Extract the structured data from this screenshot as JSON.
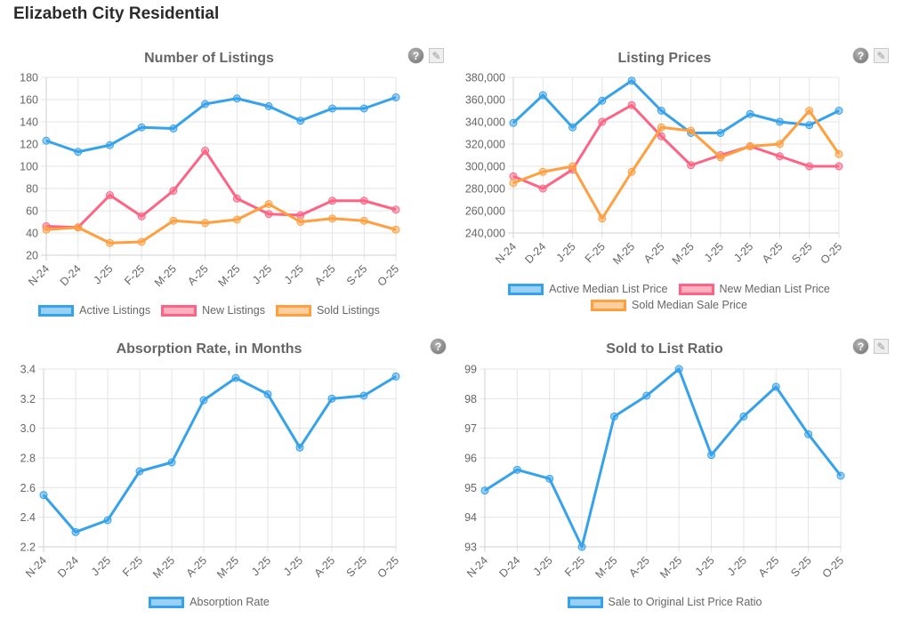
{
  "page": {
    "title": "Elizabeth City Residential"
  },
  "icons": {
    "help": "?",
    "tool": "✎"
  },
  "colors": {
    "blue": "#36a2eb",
    "pink": "#ff6384",
    "orange": "#ff9f40",
    "grid": "#e5e5e5",
    "text": "#666666"
  },
  "chart_data": [
    {
      "id": "listings",
      "type": "line",
      "title": "Number of Listings",
      "xlabel": "",
      "ylabel": "",
      "categories": [
        "N-24",
        "D-24",
        "J-25",
        "F-25",
        "M-25",
        "A-25",
        "M-25",
        "J-25",
        "J-25",
        "A-25",
        "S-25",
        "O-25"
      ],
      "ylim": [
        20,
        180
      ],
      "yticks": [
        20,
        40,
        60,
        80,
        100,
        120,
        140,
        160,
        180
      ],
      "ytick_labels": [
        "20",
        "40",
        "60",
        "80",
        "100",
        "120",
        "140",
        "160",
        "180"
      ],
      "grid": true,
      "legend": "bottom",
      "series": [
        {
          "name": "Active Listings",
          "color": "#36a2eb",
          "values": [
            123,
            113,
            119,
            135,
            134,
            156,
            161,
            154,
            141,
            152,
            152,
            162
          ]
        },
        {
          "name": "New Listings",
          "color": "#ff6384",
          "values": [
            46,
            45,
            74,
            55,
            78,
            114,
            71,
            57,
            56,
            69,
            69,
            61
          ]
        },
        {
          "name": "Sold Listings",
          "color": "#ff9f40",
          "values": [
            43,
            45,
            31,
            32,
            51,
            49,
            52,
            66,
            50,
            53,
            51,
            43
          ]
        }
      ]
    },
    {
      "id": "prices",
      "type": "line",
      "title": "Listing Prices",
      "xlabel": "",
      "ylabel": "",
      "categories": [
        "N-24",
        "D-24",
        "J-25",
        "F-25",
        "M-25",
        "A-25",
        "M-25",
        "J-25",
        "J-25",
        "A-25",
        "S-25",
        "O-25"
      ],
      "ylim": [
        240000,
        380000
      ],
      "yticks": [
        240000,
        260000,
        280000,
        300000,
        320000,
        340000,
        360000,
        380000
      ],
      "ytick_labels": [
        "240,000",
        "260,000",
        "280,000",
        "300,000",
        "320,000",
        "340,000",
        "360,000",
        "380,000"
      ],
      "grid": true,
      "legend": "bottom",
      "series": [
        {
          "name": "Active Median List Price",
          "color": "#36a2eb",
          "values": [
            339000,
            364000,
            335000,
            359000,
            377000,
            350000,
            330000,
            330000,
            347000,
            340000,
            337000,
            350000
          ]
        },
        {
          "name": "New Median List Price",
          "color": "#ff6384",
          "values": [
            291000,
            280000,
            297000,
            340000,
            355000,
            327000,
            301000,
            310000,
            318000,
            309000,
            300000,
            300000
          ]
        },
        {
          "name": "Sold Median Sale Price",
          "color": "#ff9f40",
          "values": [
            285000,
            295000,
            300000,
            253000,
            295000,
            335000,
            332000,
            308000,
            318000,
            320000,
            350000,
            311000
          ]
        }
      ]
    },
    {
      "id": "absorption",
      "type": "line",
      "title": "Absorption Rate, in Months",
      "xlabel": "",
      "ylabel": "",
      "categories": [
        "N-24",
        "D-24",
        "J-25",
        "F-25",
        "M-25",
        "A-25",
        "M-25",
        "J-25",
        "J-25",
        "A-25",
        "S-25",
        "O-25"
      ],
      "ylim": [
        2.2,
        3.4
      ],
      "yticks": [
        2.2,
        2.4,
        2.6,
        2.8,
        3.0,
        3.2,
        3.4
      ],
      "ytick_labels": [
        "2.2",
        "2.4",
        "2.6",
        "2.8",
        "3.0",
        "3.2",
        "3.4"
      ],
      "grid": true,
      "legend": "bottom",
      "series": [
        {
          "name": "Absorption Rate",
          "color": "#36a2eb",
          "values": [
            2.55,
            2.3,
            2.38,
            2.71,
            2.77,
            3.19,
            3.34,
            3.23,
            2.87,
            3.2,
            3.22,
            3.35
          ]
        }
      ]
    },
    {
      "id": "ratio",
      "type": "line",
      "title": "Sold to List Ratio",
      "xlabel": "",
      "ylabel": "",
      "categories": [
        "N-24",
        "D-24",
        "J-25",
        "F-25",
        "M-25",
        "A-25",
        "M-25",
        "J-25",
        "J-25",
        "A-25",
        "S-25",
        "O-25"
      ],
      "ylim": [
        93,
        99
      ],
      "yticks": [
        93,
        94,
        95,
        96,
        97,
        98,
        99
      ],
      "ytick_labels": [
        "93",
        "94",
        "95",
        "96",
        "97",
        "98",
        "99"
      ],
      "grid": true,
      "legend": "bottom",
      "series": [
        {
          "name": "Sale to Original List Price Ratio",
          "color": "#36a2eb",
          "values": [
            94.9,
            95.6,
            95.3,
            93.0,
            97.4,
            98.1,
            99.0,
            96.1,
            97.4,
            98.4,
            96.8,
            95.4
          ]
        }
      ]
    }
  ]
}
